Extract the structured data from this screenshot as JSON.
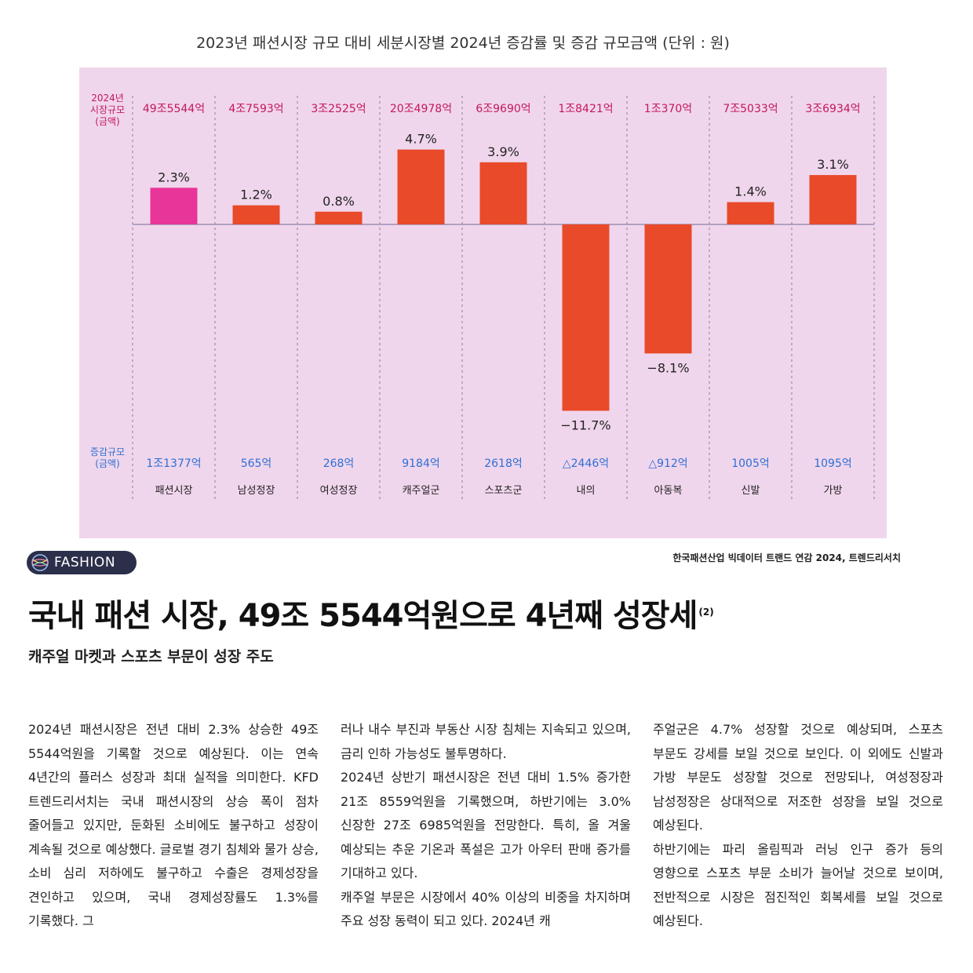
{
  "colors": {
    "highlight_bar": "#e8359a",
    "bar": "#e84a2a",
    "size_label": "#c2185b",
    "change_label": "#2d6fd6",
    "axis_label": "#c2185b",
    "panel_bg": "#f0d6ec",
    "badge_bg": "#2c2f4a"
  },
  "chart_data": {
    "type": "bar",
    "title": "2023년 패션시장 규모 대비 세분시장별 2024년 증감률 및 증감 규모금액 (단위 : 원)",
    "categories": [
      "패션시장",
      "남성정장",
      "여성정장",
      "캐주얼군",
      "스포츠군",
      "내의",
      "아동복",
      "신발",
      "가방"
    ],
    "values": [
      2.3,
      1.2,
      0.8,
      4.7,
      3.9,
      -11.7,
      -8.1,
      1.4,
      3.1
    ],
    "value_labels": [
      "2.3%",
      "1.2%",
      "0.8%",
      "4.7%",
      "3.9%",
      "−11.7%",
      "−8.1%",
      "1.4%",
      "3.1%"
    ],
    "market_size_label": [
      "2024년",
      "시장규모",
      "(금액)"
    ],
    "market_size": [
      "49조5544억",
      "4조7593억",
      "3조2525억",
      "20조4978억",
      "6조9690억",
      "1조8421억",
      "1조370억",
      "7조5033억",
      "3조6934억"
    ],
    "change_amount_label": [
      "증감규모",
      "(금액)"
    ],
    "change_amount": [
      "1조1377억",
      "565억",
      "268억",
      "9184억",
      "2618억",
      "△2446억",
      "△912억",
      "1005억",
      "1095억"
    ],
    "highlight_index": 0,
    "ylim": [
      -12,
      5
    ],
    "grid": false
  },
  "source": "한국패션산업 빅데이터 트랜드 연감 2024, 트렌드리서치",
  "badge": {
    "icon": "globe-icon",
    "label": "FASHION"
  },
  "article": {
    "headline": "국내 패션 시장, 49조 5544억원으로 4년째 성장세",
    "footnote": "(2)",
    "subhead": "캐주얼 마켓과 스포츠 부문이 성장 주도",
    "col1": "2024년 패션시장은 전년 대비 2.3% 상승한 49조 5544억원을 기록할 것으로 예상된다. 이는 연속 4년간의 플러스 성장과 최대 실적을 의미한다. KFD 트렌드리서치는 국내 패션시장의 상승 폭이 점차 줄어들고 있지만, 둔화된 소비에도 불구하고 성장이 계속될 것으로 예상했다. 글로벌 경기 침체와 물가 상승, 소비 심리 저하에도 불구하고 수출은 경제성장을 견인하고 있으며, 국내 경제성장률도 1.3%를 기록했다. 그",
    "col2_p1": "러나 내수 부진과 부동산 시장 침체는 지속되고 있으며, 금리 인하 가능성도 불투명하다.",
    "col2_p2": "2024년 상반기 패션시장은 전년 대비 1.5% 증가한 21조 8559억원을 기록했으며, 하반기에는 3.0% 신장한 27조 6985억원을 전망한다. 특히, 올 겨울 예상되는 추운 기온과 폭설은 고가 아우터 판매 증가를 기대하고 있다.",
    "col2_p3": "캐주얼 부문은 시장에서 40% 이상의 비중을 차지하며 주요 성장 동력이 되고 있다. 2024년 캐",
    "col3_p1": "주얼군은 4.7% 성장할 것으로 예상되며, 스포츠 부문도 강세를 보일 것으로 보인다. 이 외에도 신발과 가방 부문도 성장할 것으로 전망되나, 여성정장과 남성정장은 상대적으로 저조한 성장을 보일 것으로 예상된다.",
    "col3_p2": "하반기에는 파리 올림픽과 러닝 인구 증가 등의 영향으로 스포츠 부문 소비가 늘어날 것으로 보이며, 전반적으로 시장은 점진적인 회복세를 보일 것으로 예상된다."
  }
}
